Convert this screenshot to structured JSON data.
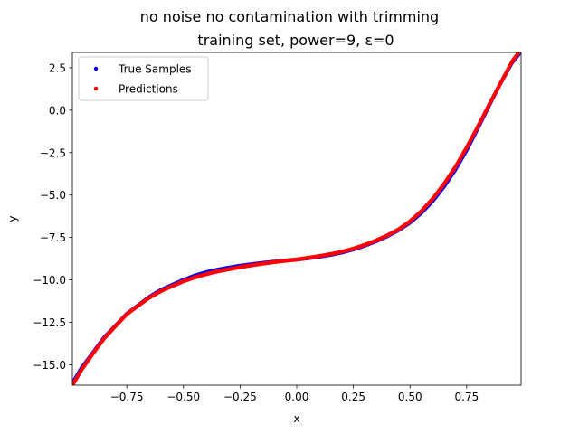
{
  "chart_data": {
    "type": "scatter",
    "title": "no noise no contamination with trimming",
    "subtitle": "training set, power=9, ε=0",
    "xlabel": "x",
    "ylabel": "y",
    "xlim": [
      -0.99,
      0.99
    ],
    "ylim": [
      -16.2,
      3.4
    ],
    "xticks": [
      -0.75,
      -0.5,
      -0.25,
      0.0,
      0.25,
      0.5,
      0.75
    ],
    "xtick_labels": [
      "−0.75",
      "−0.50",
      "−0.25",
      "0.00",
      "0.25",
      "0.50",
      "0.75"
    ],
    "yticks": [
      -15.0,
      -12.5,
      -10.0,
      -7.5,
      -5.0,
      -2.5,
      0.0,
      2.5
    ],
    "ytick_labels": [
      "−15.0",
      "−12.5",
      "−10.0",
      "−7.5",
      "−5.0",
      "−2.5",
      "0.0",
      "2.5"
    ],
    "grid": false,
    "legend_position": "top-left",
    "series": [
      {
        "name": "True Samples",
        "color": "#0000ff",
        "x": [
          -0.99,
          -0.95,
          -0.9,
          -0.85,
          -0.8,
          -0.75,
          -0.7,
          -0.65,
          -0.6,
          -0.55,
          -0.5,
          -0.45,
          -0.4,
          -0.35,
          -0.3,
          -0.25,
          -0.2,
          -0.15,
          -0.1,
          -0.05,
          0.0,
          0.05,
          0.1,
          0.15,
          0.2,
          0.25,
          0.3,
          0.35,
          0.4,
          0.45,
          0.5,
          0.55,
          0.6,
          0.65,
          0.7,
          0.75,
          0.8,
          0.85,
          0.9,
          0.95,
          0.98
        ],
        "y": [
          -16.1,
          -15.2,
          -14.3,
          -13.4,
          -12.7,
          -12.0,
          -11.5,
          -11.0,
          -10.6,
          -10.3,
          -10.0,
          -9.75,
          -9.55,
          -9.4,
          -9.28,
          -9.17,
          -9.08,
          -9.0,
          -8.93,
          -8.86,
          -8.8,
          -8.72,
          -8.63,
          -8.52,
          -8.38,
          -8.2,
          -7.98,
          -7.72,
          -7.42,
          -7.06,
          -6.62,
          -6.05,
          -5.35,
          -4.5,
          -3.5,
          -2.35,
          -1.05,
          0.3,
          1.6,
          2.8,
          3.3
        ]
      },
      {
        "name": "Predictions",
        "color": "#ff0000",
        "x": [
          -0.99,
          -0.95,
          -0.9,
          -0.85,
          -0.8,
          -0.75,
          -0.7,
          -0.65,
          -0.6,
          -0.55,
          -0.5,
          -0.45,
          -0.4,
          -0.35,
          -0.3,
          -0.25,
          -0.2,
          -0.15,
          -0.1,
          -0.05,
          0.0,
          0.05,
          0.1,
          0.15,
          0.2,
          0.25,
          0.3,
          0.35,
          0.4,
          0.45,
          0.5,
          0.55,
          0.6,
          0.65,
          0.7,
          0.75,
          0.8,
          0.85,
          0.9,
          0.95,
          0.98
        ],
        "y": [
          -16.2,
          -15.3,
          -14.35,
          -13.45,
          -12.72,
          -12.02,
          -11.52,
          -11.04,
          -10.66,
          -10.36,
          -10.08,
          -9.85,
          -9.66,
          -9.5,
          -9.37,
          -9.25,
          -9.14,
          -9.04,
          -8.95,
          -8.87,
          -8.8,
          -8.7,
          -8.6,
          -8.48,
          -8.34,
          -8.16,
          -7.94,
          -7.68,
          -7.38,
          -7.02,
          -6.55,
          -5.95,
          -5.22,
          -4.35,
          -3.35,
          -2.2,
          -0.95,
          0.35,
          1.6,
          2.85,
          3.4
        ]
      }
    ]
  }
}
